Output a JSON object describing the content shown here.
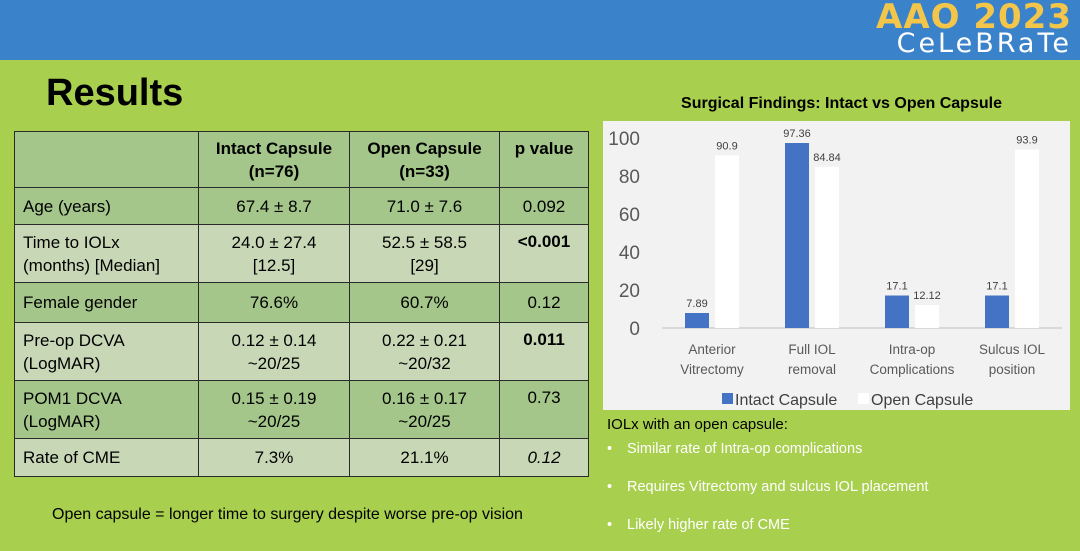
{
  "header": {
    "logo_year": "AAO 2023",
    "logo_sub": "CeLeBRaTe"
  },
  "title": "Results",
  "table": {
    "columns": [
      {
        "line1": "",
        "line2": ""
      },
      {
        "line1": "Intact Capsule",
        "line2": "(n=76)"
      },
      {
        "line1": "Open Capsule",
        "line2": "(n=33)"
      },
      {
        "line1": "p value",
        "line2": ""
      }
    ],
    "rows": [
      {
        "label": [
          "Age (years)"
        ],
        "intact": [
          "67.4 ± 8.7"
        ],
        "open": [
          "71.0 ± 7.6"
        ],
        "p": "0.092"
      },
      {
        "label": [
          "Time to IOLx",
          "(months) [Median]"
        ],
        "intact": [
          "24.0 ± 27.4",
          "[12.5]"
        ],
        "open": [
          "52.5 ± 58.5",
          "[29]"
        ],
        "p": "<0.001"
      },
      {
        "label": [
          "Female gender"
        ],
        "intact": [
          "76.6%"
        ],
        "open": [
          "60.7%"
        ],
        "p": "0.12"
      },
      {
        "label": [
          "Pre-op DCVA",
          "(LogMAR)"
        ],
        "intact": [
          "0.12 ± 0.14",
          "~20/25"
        ],
        "open": [
          "0.22 ± 0.21",
          "~20/32"
        ],
        "p": "0.011"
      },
      {
        "label": [
          "POM1 DCVA",
          "(LogMAR)"
        ],
        "intact": [
          "0.15 ± 0.19",
          "~20/25"
        ],
        "open": [
          "0.16 ± 0.17",
          "~20/25"
        ],
        "p": "0.73"
      },
      {
        "label": [
          "Rate of CME"
        ],
        "intact": [
          "7.3%"
        ],
        "open": [
          "21.1%"
        ],
        "p": "0.12"
      }
    ]
  },
  "footnote": "Open capsule = longer time to surgery despite worse pre-op vision",
  "chart_data": {
    "type": "bar",
    "title": "Surgical Findings: Intact vs Open Capsule",
    "categories": [
      [
        "Anterior",
        "Vitrectomy"
      ],
      [
        "Full IOL",
        "removal"
      ],
      [
        "Intra-op",
        "Complications"
      ],
      [
        "Sulcus IOL",
        "position"
      ]
    ],
    "series": [
      {
        "name": "Intact Capsule",
        "values": [
          7.89,
          97.36,
          17.1,
          17.1
        ],
        "labels": [
          "7.89",
          "97.36",
          "17.1",
          "17.1"
        ],
        "color": "#4472c4"
      },
      {
        "name": "Open Capsule",
        "values": [
          90.9,
          84.84,
          12.12,
          93.9
        ],
        "labels": [
          "90.9",
          "84.84",
          "12.12",
          "93.9"
        ],
        "color": "#ffffff"
      }
    ],
    "yticks": [
      0,
      20,
      40,
      60,
      80,
      100
    ],
    "ylim": [
      0,
      100
    ],
    "xlabel": "",
    "ylabel": "",
    "grid": false,
    "legend": "bottom"
  },
  "notes": {
    "heading": "IOLx with an open capsule:",
    "items": [
      "Similar rate of Intra-op complications",
      "Requires Vitrectomy and sulcus IOL placement",
      "Likely higher rate of CME"
    ]
  }
}
